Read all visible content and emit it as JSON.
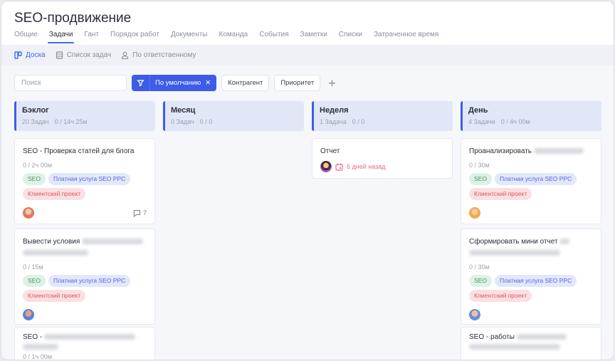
{
  "header": {
    "title": "SEO-продвижение",
    "tabs": [
      "Общие",
      "Задачи",
      "Гант",
      "Порядок работ",
      "Документы",
      "Команда",
      "События",
      "Заметки",
      "Списки",
      "Затраченное время"
    ],
    "active_tab": "Задачи"
  },
  "subnav": {
    "items": [
      "Доска",
      "Список задач",
      "По ответственному"
    ],
    "active": "Доска"
  },
  "filters": {
    "search_placeholder": "Поиск",
    "preset": "По умолчанию",
    "buttons": [
      "Контрагент",
      "Приоритет"
    ]
  },
  "columns": [
    {
      "name": "Бэклог",
      "count": "20 Задач",
      "time": "0 / 14ч 25м",
      "cards": [
        {
          "title": "SEO - Проверка статей для блога",
          "time": "0 / 2ч 00м",
          "tags": [
            "SEO",
            "Платная услуга SEO PPC",
            "Клиентский проект"
          ],
          "comments": "7"
        },
        {
          "title": "Вывести условия",
          "time": "0 / 15м",
          "tags": [
            "SEO",
            "Платная услуга SEO PPC",
            "Клиентский проект"
          ]
        },
        {
          "title": "SEO -",
          "time": "0 / 1ч 00м"
        }
      ]
    },
    {
      "name": "Месяц",
      "count": "0 Задач",
      "time": "0 / 0",
      "cards": []
    },
    {
      "name": "Неделя",
      "count": "1 Задача",
      "time": "0 / 0",
      "cards": [
        {
          "title": "Отчет",
          "due": "6 дней назад"
        }
      ]
    },
    {
      "name": "День",
      "count": "4 Задачи",
      "time": "0 / 4ч 00м",
      "cards": [
        {
          "title": "Проанализировать",
          "time": "0 / 30м",
          "tags": [
            "SEO",
            "Платная услуга SEO PPC",
            "Клиентский проект"
          ]
        },
        {
          "title": "Сформировать мини отчет",
          "time": "0 / 30м",
          "tags": [
            "SEO",
            "Платная услуга SEO PPC",
            "Клиентский проект"
          ]
        },
        {
          "title": "SEO - работы"
        }
      ]
    }
  ],
  "colors": {
    "accent": "#3d5ce8",
    "column_header": "#e2e7f8",
    "tag_seo": "#dff1e6",
    "tag_paid": "#e2e7fb",
    "tag_client": "#fbe0e2",
    "overdue": "#ef6b7b"
  }
}
